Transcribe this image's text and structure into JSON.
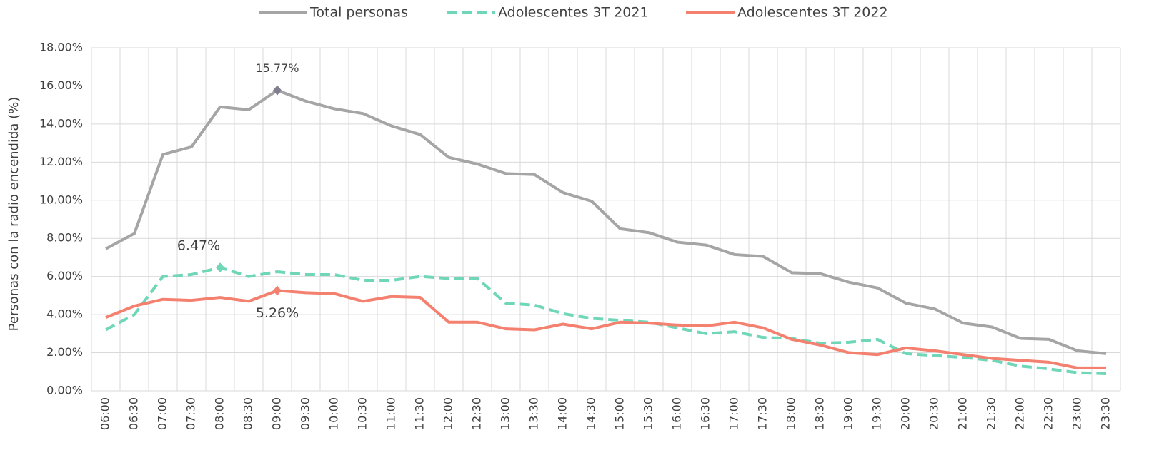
{
  "chart_data": {
    "type": "line",
    "y_label": "Personas con la radio encendida (%)",
    "categories": [
      "06:00",
      "06:30",
      "07:00",
      "07:30",
      "08:00",
      "08:30",
      "09:00",
      "09:30",
      "10:00",
      "10:30",
      "11:00",
      "11:30",
      "12:00",
      "12:30",
      "13:00",
      "13:30",
      "14:00",
      "14:30",
      "15:00",
      "15:30",
      "16:00",
      "16:30",
      "17:00",
      "17:30",
      "18:00",
      "18:30",
      "19:00",
      "19:30",
      "20:00",
      "20:30",
      "21:00",
      "21:30",
      "22:00",
      "22:30",
      "23:00",
      "23:30"
    ],
    "series": [
      {
        "name": "Total personas",
        "color": "#a5a5a5",
        "dashed": false,
        "values": [
          7.45,
          8.25,
          12.4,
          12.8,
          14.9,
          14.75,
          15.77,
          15.2,
          14.8,
          14.55,
          13.9,
          13.45,
          12.25,
          11.9,
          11.4,
          11.35,
          10.4,
          9.95,
          8.5,
          8.3,
          7.8,
          7.65,
          7.15,
          7.05,
          6.2,
          6.15,
          5.7,
          5.4,
          4.6,
          4.3,
          3.55,
          3.35,
          2.75,
          2.7,
          2.1,
          1.95
        ],
        "value_labels": [
          null,
          null,
          null,
          null,
          null,
          null,
          "15.77%",
          null,
          null,
          null,
          null,
          null,
          null,
          null,
          null,
          null,
          null,
          null,
          null,
          null,
          null,
          null,
          null,
          null,
          null,
          null,
          null,
          null,
          null,
          null,
          null,
          null,
          null,
          null,
          null,
          null
        ]
      },
      {
        "name": "Adolescentes 3T 2021",
        "color": "#6fd6b8",
        "dashed": true,
        "values": [
          3.2,
          4.0,
          6.0,
          6.1,
          6.47,
          6.0,
          6.25,
          6.1,
          6.1,
          5.8,
          5.8,
          6.0,
          5.9,
          5.9,
          4.6,
          4.5,
          4.05,
          3.8,
          3.7,
          3.6,
          3.3,
          3.0,
          3.1,
          2.8,
          2.75,
          2.5,
          2.55,
          2.7,
          1.95,
          1.85,
          1.75,
          1.6,
          1.3,
          1.15,
          0.95,
          0.9
        ],
        "value_labels": [
          null,
          null,
          null,
          null,
          "6.47%",
          null,
          null,
          null,
          null,
          null,
          null,
          null,
          null,
          null,
          null,
          null,
          null,
          null,
          null,
          null,
          null,
          null,
          null,
          null,
          null,
          null,
          null,
          null,
          null,
          null,
          null,
          null,
          null,
          null,
          null,
          null
        ]
      },
      {
        "name": "Adolescentes 3T 2022",
        "color": "#f4806f",
        "dashed": false,
        "values": [
          3.85,
          4.45,
          4.8,
          4.75,
          4.9,
          4.7,
          5.26,
          5.15,
          5.1,
          4.7,
          4.95,
          4.9,
          3.6,
          3.6,
          3.25,
          3.2,
          3.5,
          3.25,
          3.6,
          3.55,
          3.45,
          3.4,
          3.6,
          3.3,
          2.7,
          2.4,
          2.0,
          1.9,
          2.25,
          2.1,
          1.9,
          1.7,
          1.6,
          1.5,
          1.2,
          1.2
        ],
        "value_labels": [
          null,
          null,
          null,
          null,
          null,
          null,
          "5.26%",
          null,
          null,
          null,
          null,
          null,
          null,
          null,
          null,
          null,
          null,
          null,
          null,
          null,
          null,
          null,
          null,
          null,
          null,
          null,
          null,
          null,
          null,
          null,
          null,
          null,
          null,
          null,
          null,
          null
        ]
      }
    ],
    "ylim": [
      0,
      18
    ],
    "yticks": [
      {
        "value": 0,
        "label": "0.00%"
      },
      {
        "value": 2,
        "label": "2.00%"
      },
      {
        "value": 4,
        "label": "4.00%"
      },
      {
        "value": 6,
        "label": "6.00%"
      },
      {
        "value": 8,
        "label": "8.00%"
      },
      {
        "value": 10,
        "label": "10.00%"
      },
      {
        "value": 12,
        "label": "12.00%"
      },
      {
        "value": 14,
        "label": "14.00%"
      },
      {
        "value": 16,
        "label": "16.00%"
      },
      {
        "value": 18,
        "label": "18.00%"
      }
    ],
    "grid": true,
    "legend": "top"
  }
}
